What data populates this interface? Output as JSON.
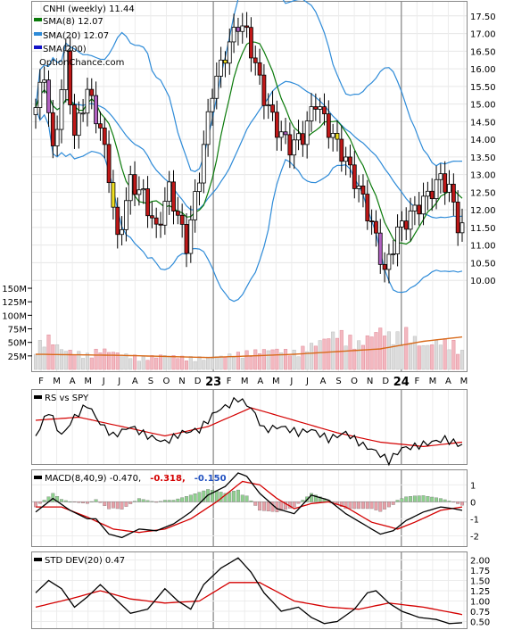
{
  "chart_data": [
    {
      "type": "candlestick",
      "legend": {
        "title": "CNHI (weekly) 11.44",
        "entries": [
          {
            "label": "SMA(8) 12.07",
            "color": "#0a7a0a"
          },
          {
            "label": "SMA(20) 12.07",
            "color": "#2e8bd8"
          },
          {
            "label": "SMA(200)",
            "color": "#1414c8"
          }
        ],
        "watermark": "OptionChance.com"
      },
      "price_axis": {
        "ticks": [
          "17.50",
          "17.00",
          "16.50",
          "16.00",
          "15.50",
          "15.00",
          "14.50",
          "14.00",
          "13.50",
          "13.00",
          "12.50",
          "12.00",
          "11.50",
          "11.00",
          "10.50",
          "10.00"
        ],
        "range": [
          9.6,
          17.9
        ]
      },
      "volume_axis": {
        "ticks": [
          "150M",
          "125M",
          "100M",
          "75M",
          "50M",
          "25M"
        ],
        "range": [
          0,
          155
        ]
      },
      "x_labels": [
        "F",
        "M",
        "A",
        "M",
        "J",
        "J",
        "A",
        "S",
        "O",
        "N",
        "D",
        "23",
        "F",
        "M",
        "A",
        "M",
        "J",
        "J",
        "A",
        "S",
        "O",
        "N",
        "D",
        "24",
        "F",
        "M",
        "A",
        "M"
      ],
      "x_year_labels": [
        "23",
        "24"
      ],
      "price_anchors": [
        [
          0,
          14.9
        ],
        [
          2,
          15.9
        ],
        [
          4,
          13.6
        ],
        [
          7,
          16.3
        ],
        [
          9,
          14.1
        ],
        [
          12,
          15.4
        ],
        [
          15,
          14.3
        ],
        [
          17,
          13.0
        ],
        [
          19,
          11.1
        ],
        [
          22,
          12.8
        ],
        [
          25,
          12.4
        ],
        [
          28,
          11.4
        ],
        [
          31,
          12.6
        ],
        [
          35,
          11.0
        ],
        [
          38,
          13.0
        ],
        [
          41,
          15.4
        ],
        [
          44,
          16.4
        ],
        [
          47,
          17.3
        ],
        [
          49,
          17.0
        ],
        [
          53,
          15.2
        ],
        [
          56,
          14.3
        ],
        [
          59,
          13.8
        ],
        [
          62,
          14.1
        ],
        [
          65,
          15.1
        ],
        [
          68,
          14.3
        ],
        [
          72,
          13.4
        ],
        [
          76,
          12.3
        ],
        [
          79,
          11.2
        ],
        [
          81,
          10.2
        ],
        [
          84,
          11.4
        ],
        [
          88,
          12.0
        ],
        [
          91,
          12.4
        ],
        [
          94,
          12.9
        ],
        [
          96,
          12.6
        ],
        [
          98,
          11.6
        ],
        [
          99,
          11.5
        ]
      ],
      "volume_anchors": [
        [
          0,
          40
        ],
        [
          3,
          55
        ],
        [
          6,
          35
        ],
        [
          9,
          30
        ],
        [
          12,
          25
        ],
        [
          15,
          35
        ],
        [
          18,
          30
        ],
        [
          21,
          25
        ],
        [
          25,
          20
        ],
        [
          30,
          25
        ],
        [
          35,
          20
        ],
        [
          40,
          20
        ],
        [
          45,
          25
        ],
        [
          50,
          30
        ],
        [
          55,
          35
        ],
        [
          60,
          30
        ],
        [
          65,
          45
        ],
        [
          70,
          65
        ],
        [
          75,
          45
        ],
        [
          80,
          70
        ],
        [
          83,
          55
        ],
        [
          86,
          65
        ],
        [
          90,
          40
        ],
        [
          94,
          50
        ],
        [
          97,
          45
        ],
        [
          99,
          30
        ]
      ],
      "vol_ma_anchors": [
        [
          0,
          28
        ],
        [
          20,
          26
        ],
        [
          40,
          22
        ],
        [
          60,
          28
        ],
        [
          80,
          38
        ],
        [
          90,
          52
        ],
        [
          99,
          60
        ]
      ]
    },
    {
      "type": "line",
      "legend": "RS vs SPY",
      "series": [
        {
          "color": "#000000"
        },
        {
          "color": "#d40000"
        }
      ],
      "anchors": [
        [
          0,
          0.55
        ],
        [
          3,
          0.15
        ],
        [
          6,
          0.55
        ],
        [
          9,
          0.25
        ],
        [
          12,
          0.05
        ],
        [
          15,
          0.35
        ],
        [
          18,
          0.55
        ],
        [
          22,
          0.4
        ],
        [
          26,
          0.55
        ],
        [
          30,
          0.65
        ],
        [
          34,
          0.5
        ],
        [
          38,
          0.45
        ],
        [
          42,
          0.15
        ],
        [
          45,
          0.05
        ],
        [
          47,
          -0.05
        ],
        [
          50,
          0.1
        ],
        [
          53,
          0.45
        ],
        [
          57,
          0.4
        ],
        [
          61,
          0.5
        ],
        [
          64,
          0.45
        ],
        [
          68,
          0.6
        ],
        [
          72,
          0.5
        ],
        [
          76,
          0.7
        ],
        [
          79,
          0.8
        ],
        [
          82,
          0.95
        ],
        [
          85,
          0.75
        ],
        [
          88,
          0.72
        ],
        [
          92,
          0.65
        ],
        [
          95,
          0.6
        ],
        [
          98,
          0.68
        ],
        [
          99,
          0.7
        ]
      ],
      "ma_anchors": [
        [
          0,
          0.3
        ],
        [
          10,
          0.25
        ],
        [
          20,
          0.4
        ],
        [
          30,
          0.55
        ],
        [
          40,
          0.4
        ],
        [
          50,
          0.1
        ],
        [
          60,
          0.3
        ],
        [
          70,
          0.5
        ],
        [
          80,
          0.65
        ],
        [
          90,
          0.72
        ],
        [
          99,
          0.65
        ]
      ]
    },
    {
      "type": "bar+line",
      "legend": {
        "label": "MACD(8,40,9) -0.470,",
        "values": [
          {
            "text": "-0.318,",
            "color": "#d40000"
          },
          {
            "text": "-0.150",
            "color": "#2050c0"
          }
        ]
      },
      "y_ticks": [
        "1",
        "0",
        "-1",
        "-2"
      ],
      "range": [
        -2.5,
        1.7
      ],
      "macd_anchors": [
        [
          0,
          -0.6
        ],
        [
          4,
          0.2
        ],
        [
          8,
          -0.5
        ],
        [
          12,
          -1.0
        ],
        [
          14,
          -1.0
        ],
        [
          17,
          -1.9
        ],
        [
          20,
          -2.1
        ],
        [
          24,
          -1.6
        ],
        [
          28,
          -1.7
        ],
        [
          32,
          -1.3
        ],
        [
          36,
          -0.6
        ],
        [
          40,
          0.4
        ],
        [
          44,
          0.9
        ],
        [
          47,
          1.7
        ],
        [
          49,
          1.5
        ],
        [
          52,
          0.5
        ],
        [
          56,
          -0.4
        ],
        [
          60,
          -0.7
        ],
        [
          64,
          0.4
        ],
        [
          68,
          0.1
        ],
        [
          72,
          -0.7
        ],
        [
          76,
          -1.3
        ],
        [
          80,
          -1.9
        ],
        [
          83,
          -1.7
        ],
        [
          86,
          -1.1
        ],
        [
          90,
          -0.6
        ],
        [
          94,
          -0.3
        ],
        [
          97,
          -0.4
        ],
        [
          99,
          -0.5
        ]
      ],
      "signal_anchors": [
        [
          0,
          -0.3
        ],
        [
          6,
          -0.3
        ],
        [
          12,
          -0.9
        ],
        [
          18,
          -1.6
        ],
        [
          24,
          -1.8
        ],
        [
          30,
          -1.6
        ],
        [
          36,
          -1.0
        ],
        [
          42,
          0.0
        ],
        [
          48,
          1.2
        ],
        [
          52,
          1.0
        ],
        [
          56,
          0.2
        ],
        [
          60,
          -0.4
        ],
        [
          64,
          -0.1
        ],
        [
          68,
          0.0
        ],
        [
          72,
          -0.3
        ],
        [
          78,
          -1.2
        ],
        [
          84,
          -1.6
        ],
        [
          88,
          -1.2
        ],
        [
          94,
          -0.5
        ],
        [
          99,
          -0.3
        ]
      ],
      "colors": {
        "macd": "#000000",
        "signal": "#d40000",
        "hist_pos": "#8fd08f",
        "hist_neg": "#e8a0a8"
      }
    },
    {
      "type": "line",
      "legend": "STD DEV(20) 0.47",
      "y_ticks": [
        "2.00",
        "1.75",
        "1.50",
        "1.25",
        "1.00",
        "0.75",
        "0.50"
      ],
      "range": [
        0.38,
        2.12
      ],
      "std_anchors": [
        [
          0,
          1.2
        ],
        [
          3,
          1.5
        ],
        [
          6,
          1.3
        ],
        [
          9,
          0.85
        ],
        [
          12,
          1.1
        ],
        [
          15,
          1.4
        ],
        [
          18,
          1.1
        ],
        [
          22,
          0.7
        ],
        [
          26,
          0.8
        ],
        [
          30,
          1.3
        ],
        [
          33,
          1.0
        ],
        [
          36,
          0.8
        ],
        [
          39,
          1.4
        ],
        [
          43,
          1.8
        ],
        [
          47,
          2.05
        ],
        [
          50,
          1.7
        ],
        [
          53,
          1.2
        ],
        [
          57,
          0.75
        ],
        [
          61,
          0.85
        ],
        [
          64,
          0.6
        ],
        [
          67,
          0.45
        ],
        [
          70,
          0.5
        ],
        [
          74,
          0.8
        ],
        [
          77,
          1.2
        ],
        [
          79,
          1.25
        ],
        [
          82,
          0.95
        ],
        [
          85,
          0.75
        ],
        [
          89,
          0.6
        ],
        [
          93,
          0.55
        ],
        [
          96,
          0.45
        ],
        [
          99,
          0.47
        ]
      ],
      "ma_anchors": [
        [
          0,
          0.85
        ],
        [
          8,
          1.05
        ],
        [
          15,
          1.25
        ],
        [
          22,
          1.05
        ],
        [
          30,
          0.95
        ],
        [
          38,
          1.0
        ],
        [
          45,
          1.45
        ],
        [
          52,
          1.45
        ],
        [
          60,
          1.0
        ],
        [
          68,
          0.85
        ],
        [
          75,
          0.8
        ],
        [
          82,
          0.95
        ],
        [
          90,
          0.85
        ],
        [
          99,
          0.67
        ]
      ]
    }
  ]
}
